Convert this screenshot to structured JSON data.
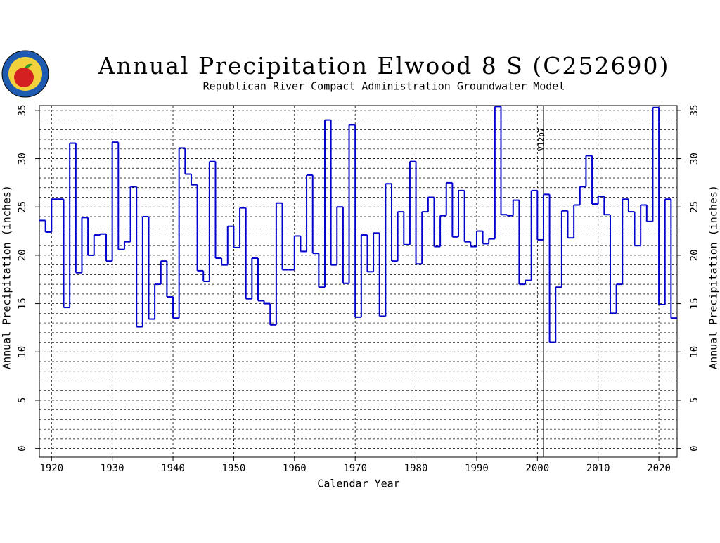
{
  "chart_data": {
    "type": "step",
    "title": "Annual Precipitation Elwood 8 S (C252690)",
    "subtitle": "Republican River Compact Administration Groundwater Model",
    "xlabel": "Calendar Year",
    "ylabel": "Annual Precipitation (inches)",
    "y2label": "Annual Precipitation (inches)",
    "x": [
      1918,
      1919,
      1920,
      1921,
      1922,
      1923,
      1924,
      1925,
      1926,
      1927,
      1928,
      1929,
      1930,
      1931,
      1932,
      1933,
      1934,
      1935,
      1936,
      1937,
      1938,
      1939,
      1940,
      1941,
      1942,
      1943,
      1944,
      1945,
      1946,
      1947,
      1948,
      1949,
      1950,
      1951,
      1952,
      1953,
      1954,
      1955,
      1956,
      1957,
      1958,
      1959,
      1960,
      1961,
      1962,
      1963,
      1964,
      1965,
      1966,
      1967,
      1968,
      1969,
      1970,
      1971,
      1972,
      1973,
      1974,
      1975,
      1976,
      1977,
      1978,
      1979,
      1980,
      1981,
      1982,
      1983,
      1984,
      1985,
      1986,
      1987,
      1988,
      1989,
      1990,
      1991,
      1992,
      1993,
      1994,
      1995,
      1996,
      1997,
      1998,
      1999,
      2000,
      2001,
      2002,
      2003,
      2004,
      2005,
      2006,
      2007,
      2008,
      2009,
      2010,
      2011,
      2012,
      2013,
      2014,
      2015,
      2016,
      2017,
      2018,
      2019,
      2020,
      2021,
      2022
    ],
    "series": [
      {
        "name": "Annual Precipitation",
        "color": "#0000cc",
        "values": [
          23.6,
          22.4,
          25.8,
          25.8,
          14.6,
          31.6,
          18.2,
          23.9,
          20.0,
          22.1,
          22.2,
          19.4,
          31.7,
          20.6,
          21.4,
          27.1,
          12.6,
          24.0,
          13.4,
          17.0,
          19.4,
          15.7,
          13.5,
          31.1,
          28.4,
          27.3,
          18.4,
          17.3,
          29.7,
          19.7,
          19.0,
          23.0,
          20.8,
          24.9,
          15.5,
          19.7,
          15.3,
          15.0,
          12.8,
          25.4,
          18.5,
          18.5,
          22.0,
          20.4,
          28.3,
          20.2,
          16.7,
          34.0,
          19.0,
          25.0,
          17.1,
          33.5,
          13.6,
          22.1,
          18.3,
          22.3,
          13.7,
          27.4,
          19.4,
          24.5,
          21.1,
          29.7,
          19.1,
          24.5,
          26.0,
          20.9,
          24.1,
          27.5,
          21.9,
          26.7,
          21.4,
          20.9,
          22.5,
          21.2,
          21.7,
          35.4,
          24.2,
          24.1,
          25.7,
          17.0,
          17.4,
          26.7,
          21.6,
          26.3,
          11.0,
          16.7,
          24.6,
          21.8,
          25.2,
          27.1,
          30.3,
          25.3,
          26.1,
          24.2,
          14.0,
          17.0,
          25.8,
          24.5,
          21.0,
          25.2,
          23.5,
          35.3,
          14.9,
          25.8,
          13.5
        ]
      }
    ],
    "xlim": [
      1918,
      2023
    ],
    "xticks": [
      1920,
      1930,
      1940,
      1950,
      1960,
      1970,
      1980,
      1990,
      2000,
      2010,
      2020
    ],
    "ylim": [
      -0.9,
      35.5
    ],
    "yticks": [
      0,
      5,
      10,
      15,
      20,
      25,
      30,
      35
    ],
    "y2lim": [
      -0.9,
      35.5
    ],
    "y2ticks": [
      0,
      5,
      10,
      15,
      20,
      25,
      30,
      35
    ],
    "minor_yticks": [
      1,
      2,
      3,
      4,
      6,
      7,
      8,
      9,
      11,
      12,
      13,
      14,
      16,
      17,
      18,
      19,
      21,
      22,
      23,
      24,
      26,
      27,
      28,
      29,
      31,
      32,
      33,
      34
    ],
    "grid": true,
    "annotations": [
      {
        "text": "V12p7",
        "x": 2001
      }
    ]
  }
}
